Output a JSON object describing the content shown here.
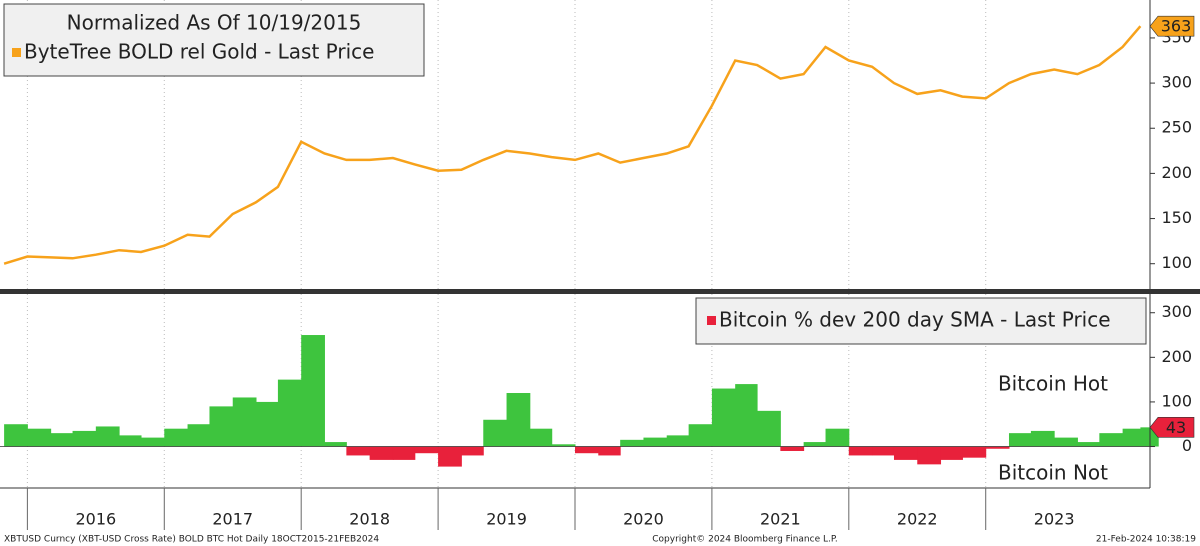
{
  "chart_data": [
    {
      "type": "line",
      "title": "Normalized As Of 10/19/2015",
      "x": [
        2015.83,
        2016.0,
        2016.17,
        2016.33,
        2016.5,
        2016.67,
        2016.83,
        2017.0,
        2017.17,
        2017.33,
        2017.5,
        2017.67,
        2017.83,
        2018.0,
        2018.17,
        2018.33,
        2018.5,
        2018.67,
        2018.83,
        2019.0,
        2019.17,
        2019.33,
        2019.5,
        2019.67,
        2019.83,
        2020.0,
        2020.17,
        2020.33,
        2020.5,
        2020.67,
        2020.83,
        2021.0,
        2021.17,
        2021.33,
        2021.5,
        2021.67,
        2021.83,
        2022.0,
        2022.17,
        2022.33,
        2022.5,
        2022.67,
        2022.83,
        2023.0,
        2023.17,
        2023.33,
        2023.5,
        2023.67,
        2023.83,
        2024.0,
        2024.13
      ],
      "series": [
        {
          "name": "ByteTree BOLD rel Gold - Last Price",
          "color": "#f7a21b",
          "values": [
            100,
            108,
            107,
            106,
            110,
            115,
            113,
            120,
            132,
            130,
            155,
            168,
            185,
            235,
            222,
            215,
            215,
            217,
            210,
            203,
            204,
            215,
            225,
            222,
            218,
            215,
            222,
            212,
            217,
            222,
            230,
            275,
            325,
            320,
            305,
            310,
            340,
            325,
            318,
            300,
            288,
            292,
            285,
            283,
            300,
            310,
            315,
            310,
            320,
            340,
            363
          ]
        }
      ],
      "xlim": [
        2015.8,
        2024.2
      ],
      "xticks": [
        2016,
        2017,
        2018,
        2019,
        2020,
        2021,
        2022,
        2023
      ],
      "ylim": [
        72,
        392
      ],
      "yticks": [
        100,
        150,
        200,
        250,
        300,
        350
      ],
      "grid": true
    },
    {
      "type": "bar",
      "x": [
        2015.83,
        2016.0,
        2016.17,
        2016.33,
        2016.5,
        2016.67,
        2016.83,
        2017.0,
        2017.17,
        2017.33,
        2017.5,
        2017.67,
        2017.83,
        2018.0,
        2018.17,
        2018.33,
        2018.5,
        2018.67,
        2018.83,
        2019.0,
        2019.17,
        2019.33,
        2019.5,
        2019.67,
        2019.83,
        2020.0,
        2020.17,
        2020.33,
        2020.5,
        2020.67,
        2020.83,
        2021.0,
        2021.17,
        2021.33,
        2021.5,
        2021.67,
        2021.83,
        2022.0,
        2022.17,
        2022.33,
        2022.5,
        2022.67,
        2022.83,
        2023.0,
        2023.17,
        2023.33,
        2023.5,
        2023.67,
        2023.83,
        2024.0,
        2024.13
      ],
      "series": [
        {
          "name": "Bitcoin % dev 200 day SMA - Last Price",
          "color": "#3ec43e",
          "negative_color": "#e8213b",
          "values": [
            50,
            40,
            30,
            35,
            45,
            25,
            20,
            40,
            50,
            90,
            110,
            100,
            150,
            250,
            10,
            -20,
            -30,
            -30,
            -15,
            -45,
            -20,
            60,
            120,
            40,
            5,
            -15,
            -20,
            15,
            20,
            25,
            50,
            130,
            140,
            80,
            -10,
            10,
            40,
            -20,
            -20,
            -30,
            -40,
            -30,
            -25,
            -5,
            30,
            35,
            20,
            10,
            30,
            40,
            43
          ]
        }
      ],
      "annotations": [
        {
          "text": "Bitcoin Hot",
          "color": "#4c9a2a"
        },
        {
          "text": "Bitcoin Not",
          "color": "#e8213b"
        }
      ],
      "xlim": [
        2015.8,
        2024.2
      ],
      "xticks": [
        2016,
        2017,
        2018,
        2019,
        2020,
        2021,
        2022,
        2023
      ],
      "ylim": [
        -93,
        342
      ],
      "yticks": [
        0,
        100,
        200,
        300
      ],
      "grid": true
    }
  ],
  "footer": {
    "left": "XBTUSD Curncy (XBT-USD Cross Rate) BOLD BTC Hot  Daily 18OCT2015-21FEB2024",
    "center": "Copyright© 2024 Bloomberg Finance L.P.",
    "right": "21-Feb-2024 10:38:19"
  }
}
